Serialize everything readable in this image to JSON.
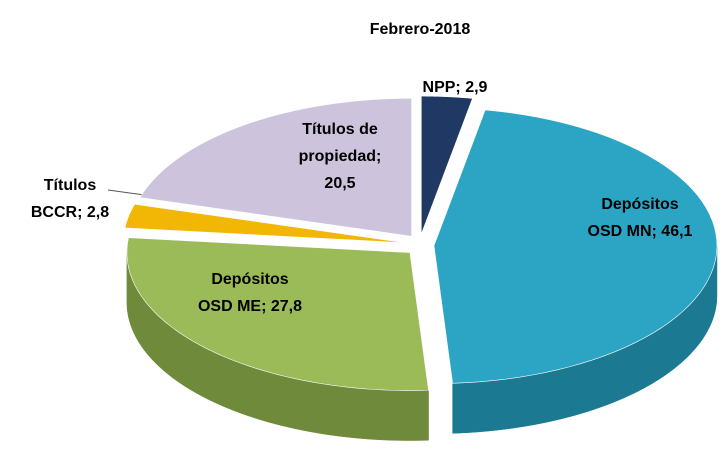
{
  "chart_data": {
    "type": "pie3d",
    "title": "Febrero-2018",
    "values": [
      2.9,
      46.1,
      27.8,
      2.8,
      20.5
    ],
    "value_labels": [
      [
        "NPP; 2,9"
      ],
      [
        "Depósitos",
        "OSD MN; 46,1"
      ],
      [
        "Depósitos",
        "OSD ME; 27,8"
      ],
      [
        "Títulos",
        "BCCR; 2,8"
      ],
      [
        "Títulos de",
        "propiedad;",
        "20,5"
      ]
    ],
    "colors": [
      "#1f3864",
      "#2ba5c3",
      "#9bbb59",
      "#f2b705",
      "#cdc3dd"
    ],
    "side_colors": [
      "#14264a",
      "#1b7a92",
      "#6f8a3a",
      "#a87d00",
      "#958aa8"
    ]
  }
}
